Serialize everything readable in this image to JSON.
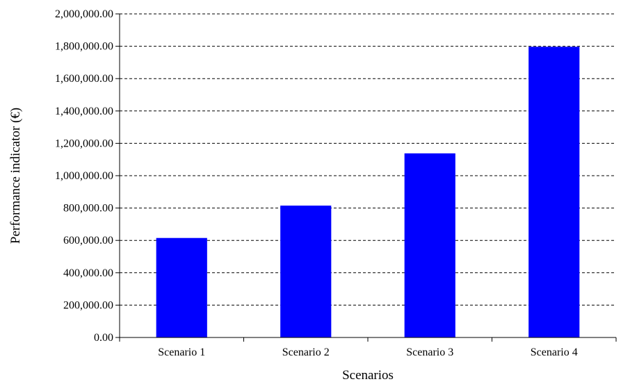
{
  "chart_data": {
    "type": "bar",
    "categories": [
      "Scenario 1",
      "Scenario 2",
      "Scenario 3",
      "Scenario 4"
    ],
    "values": [
      615000,
      815000,
      1138000,
      1797000
    ],
    "xlabel": "Scenarios",
    "ylabel": "Performance indicator (€)",
    "ylim": [
      0,
      2000000
    ],
    "yticks": [
      0,
      200000,
      400000,
      600000,
      800000,
      1000000,
      1200000,
      1400000,
      1600000,
      1800000,
      2000000
    ],
    "ytick_labels": [
      "0.00",
      "200,000.00",
      "400,000.00",
      "600,000.00",
      "800,000.00",
      "1,000,000.00",
      "1,200,000.00",
      "1,400,000.00",
      "1,600,000.00",
      "1,800,000.00",
      "2,000,000.00"
    ],
    "bar_color": "#0000ff",
    "grid": "horizontal-dashed",
    "legend": "none"
  }
}
